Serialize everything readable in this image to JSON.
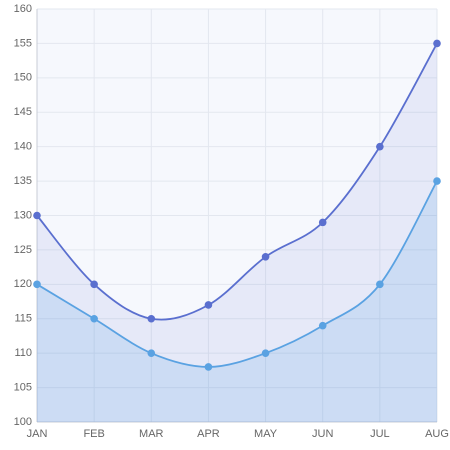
{
  "chart_data": {
    "type": "area",
    "categories": [
      "JAN",
      "FEB",
      "MAR",
      "APR",
      "MAY",
      "JUN",
      "JUL",
      "AUG"
    ],
    "series": [
      {
        "color": "#5a6fcf",
        "values": [
          130,
          120,
          115,
          117,
          124,
          129,
          140,
          155
        ]
      },
      {
        "color": "#5aa2e2",
        "values": [
          120,
          115,
          110,
          108,
          110,
          114,
          120,
          135
        ]
      }
    ],
    "ylim": [
      100,
      160
    ],
    "yticks": [
      100,
      105,
      110,
      115,
      120,
      125,
      130,
      135,
      140,
      145,
      150,
      155,
      160
    ],
    "grid": true
  }
}
